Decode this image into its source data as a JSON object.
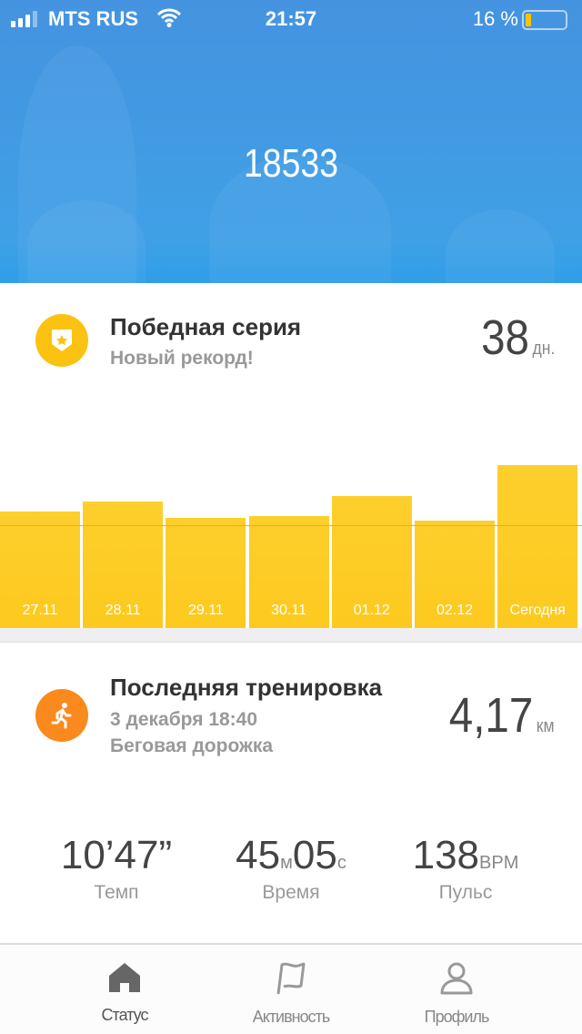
{
  "status_bar": {
    "carrier": "MTS RUS",
    "time": "21:57",
    "battery": "16 %",
    "battery_level": 0.16,
    "signal_bars": 3
  },
  "hero": {
    "steps": "18533"
  },
  "streak": {
    "title": "Победная серия",
    "subtitle": "Новый рекорд!",
    "value": "38",
    "unit": "дн.",
    "icon": "shield-star-icon",
    "color": "#fcc212"
  },
  "chart_data": {
    "type": "bar",
    "categories": [
      "27.11",
      "28.11",
      "29.11",
      "30.11",
      "01.12",
      "02.12",
      "Сегодня"
    ],
    "values": [
      13250,
      14390,
      12530,
      12730,
      15010,
      12220,
      18533
    ],
    "goal_line": 11700,
    "ylim": [
      0,
      18533
    ],
    "grid": false,
    "color": "#fdc91f"
  },
  "workout": {
    "title": "Последняя тренировка",
    "date": "3 декабря 18:40",
    "type": "Беговая дорожка",
    "distance": "4,17",
    "unit": "км",
    "icon": "running-icon",
    "color": "#fa8a1e"
  },
  "stats": [
    {
      "value": "10’47”",
      "label": "Темп"
    },
    {
      "min": "45",
      "min_unit": "м",
      "sec": "05",
      "sec_unit": "с",
      "label": "Время"
    },
    {
      "value": "138",
      "unit": "BPM",
      "label": "Пульс"
    }
  ],
  "tabs": [
    {
      "label": "Статус",
      "active": true
    },
    {
      "label": "Активность"
    },
    {
      "label": "Профиль"
    }
  ]
}
